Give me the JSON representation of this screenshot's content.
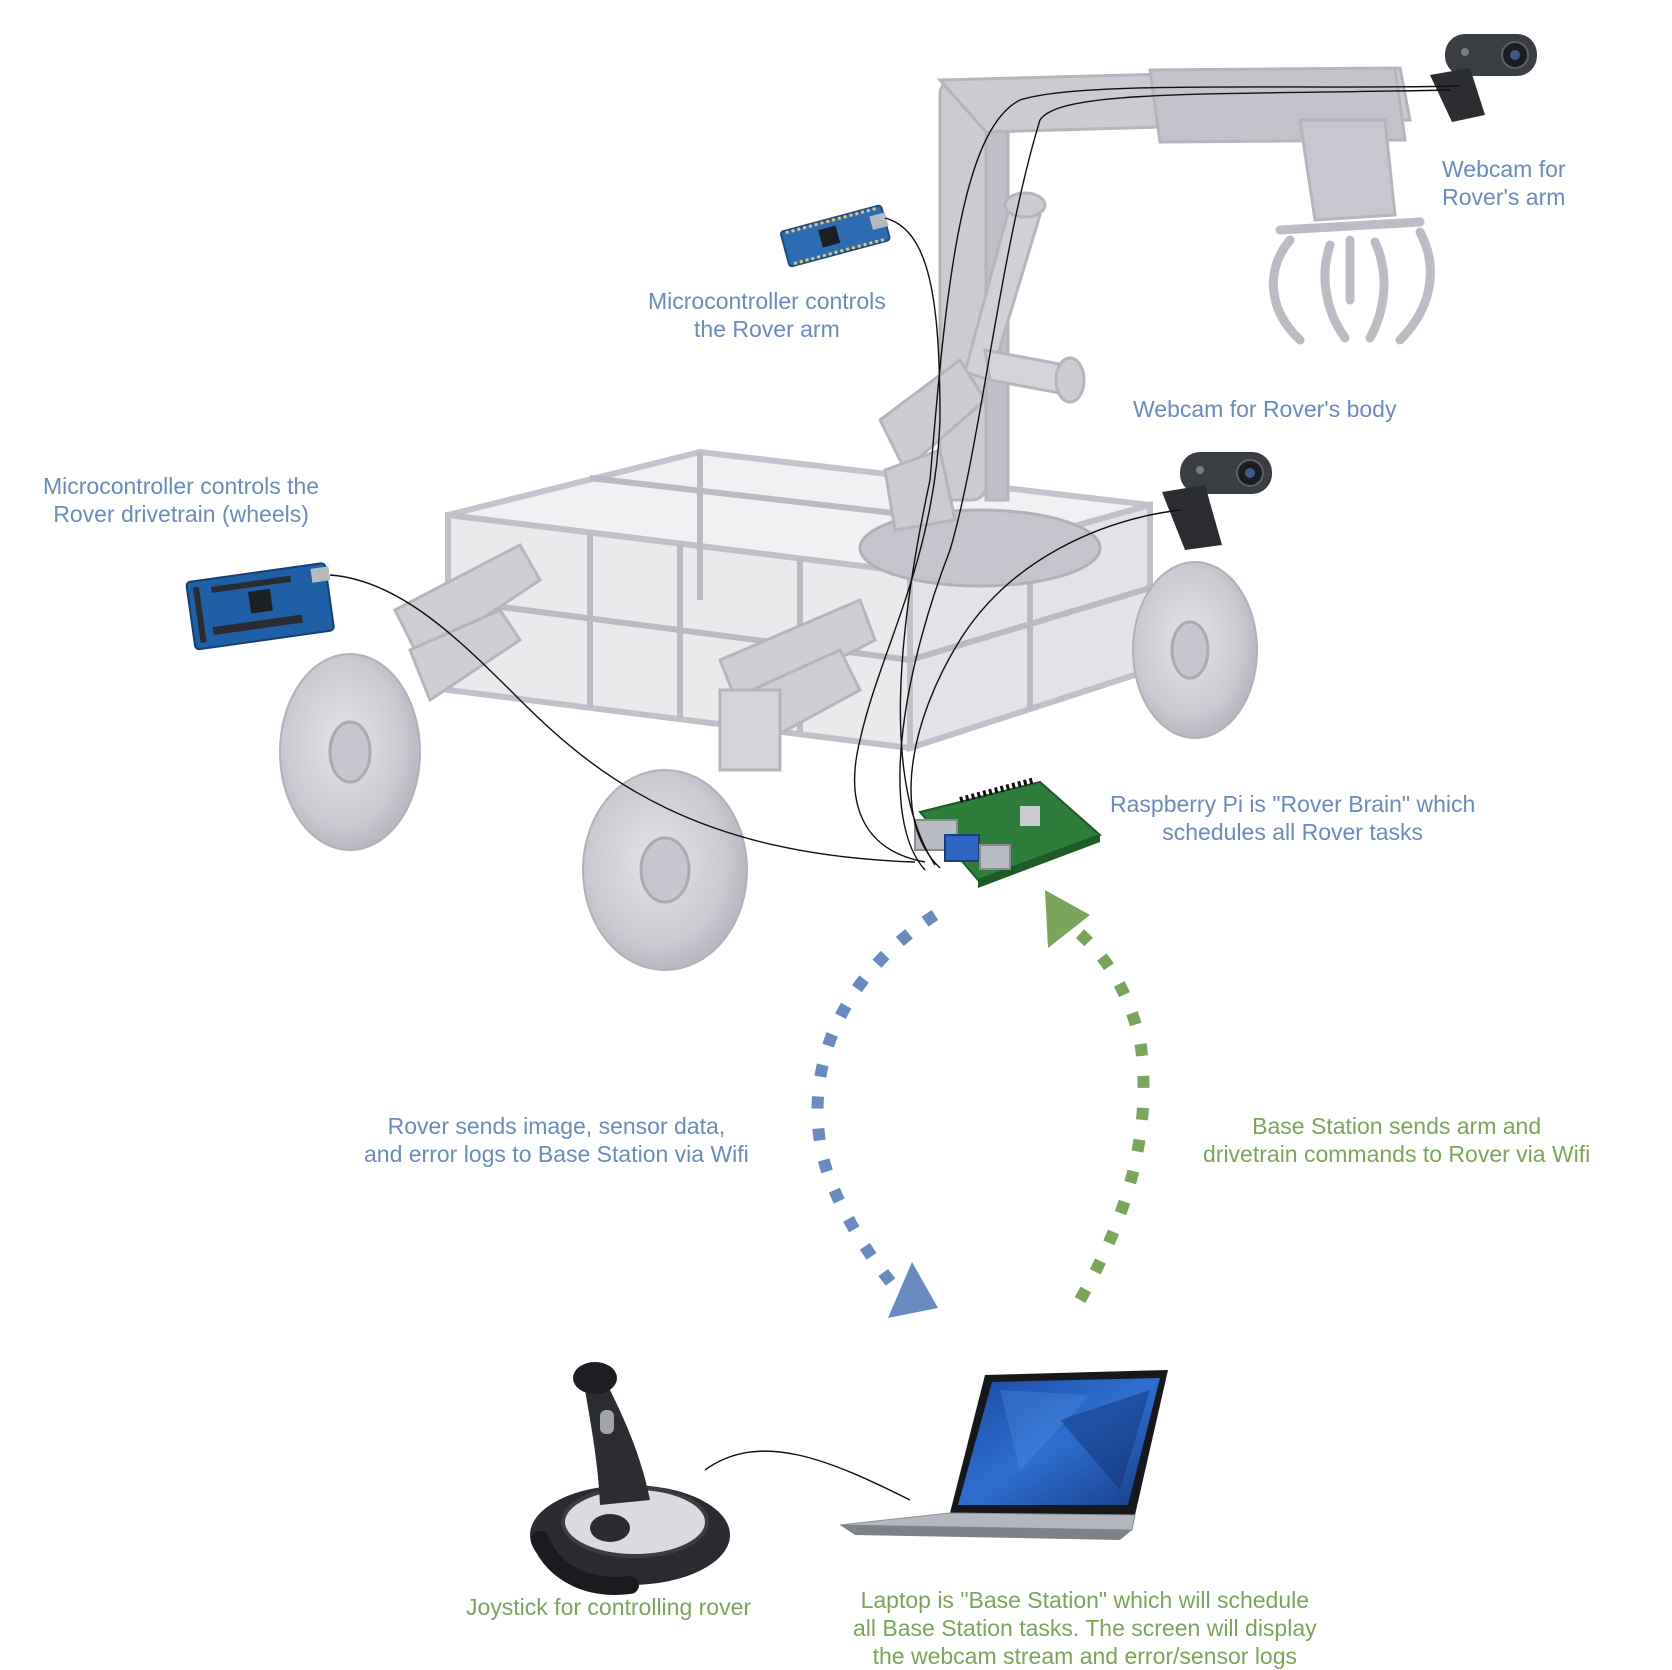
{
  "colors": {
    "blue": "#6a8bc2",
    "green": "#7aa55b",
    "frame": "#cfd0d6",
    "frame_dark": "#b9bac2",
    "wire": "#111111"
  },
  "labels": {
    "webcam_arm": [
      "Webcam for",
      "Rover's arm"
    ],
    "mcu_arm": [
      "Microcontroller controls",
      "the Rover arm"
    ],
    "webcam_body": [
      "Webcam for Rover's body"
    ],
    "mcu_drive": [
      "Microcontroller controls the",
      "Rover drivetrain (wheels)"
    ],
    "pi": [
      "Raspberry Pi is \"Rover Brain\" which",
      "schedules all Rover tasks"
    ],
    "rover_to_base": [
      "Rover sends image, sensor data,",
      "and error logs to Base Station via Wifi"
    ],
    "base_to_rover": [
      "Base Station sends arm and",
      "drivetrain commands to Rover via Wifi"
    ],
    "joystick": [
      "Joystick for controlling rover"
    ],
    "laptop": [
      "Laptop is \"Base Station\" which will schedule",
      "all Base Station tasks. The screen will display",
      "the webcam stream and error/sensor logs"
    ]
  },
  "icons": [
    "rover-frame",
    "robot-arm",
    "gripper",
    "wheel",
    "webcam",
    "arduino-nano",
    "arduino-mega",
    "raspberry-pi",
    "joystick",
    "laptop"
  ]
}
